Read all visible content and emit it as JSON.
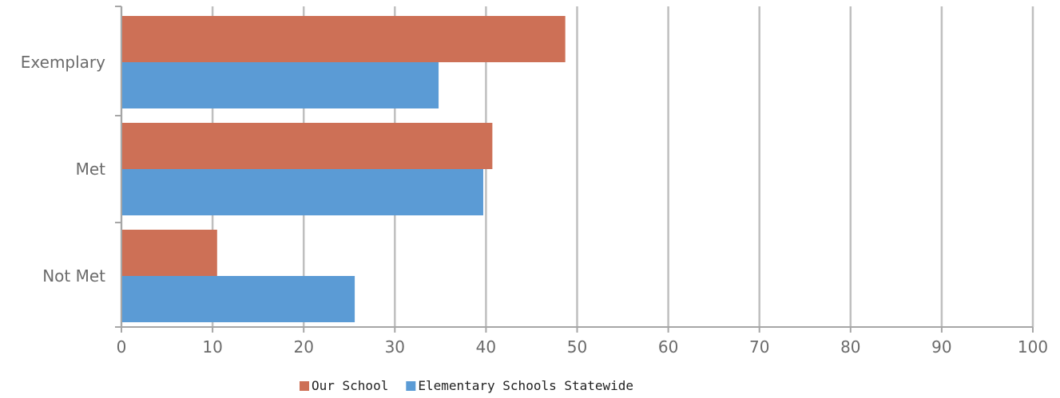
{
  "chart_data": {
    "type": "bar",
    "orientation": "horizontal",
    "title": "",
    "xlabel": "",
    "ylabel": "",
    "categories": [
      "Exemplary",
      "Met",
      "Not Met"
    ],
    "series": [
      {
        "name": "Our School",
        "color": "#cd7056",
        "values": [
          48.7,
          40.7,
          10.5
        ]
      },
      {
        "name": "Elementary Schools Statewide",
        "color": "#5b9bd5",
        "values": [
          34.8,
          39.7,
          25.6
        ]
      }
    ],
    "xlim": [
      0,
      100
    ],
    "xticks": [
      0,
      10,
      20,
      30,
      40,
      50,
      60,
      70,
      80,
      90,
      100
    ],
    "grid": "vertical",
    "legend_position": "bottom"
  }
}
